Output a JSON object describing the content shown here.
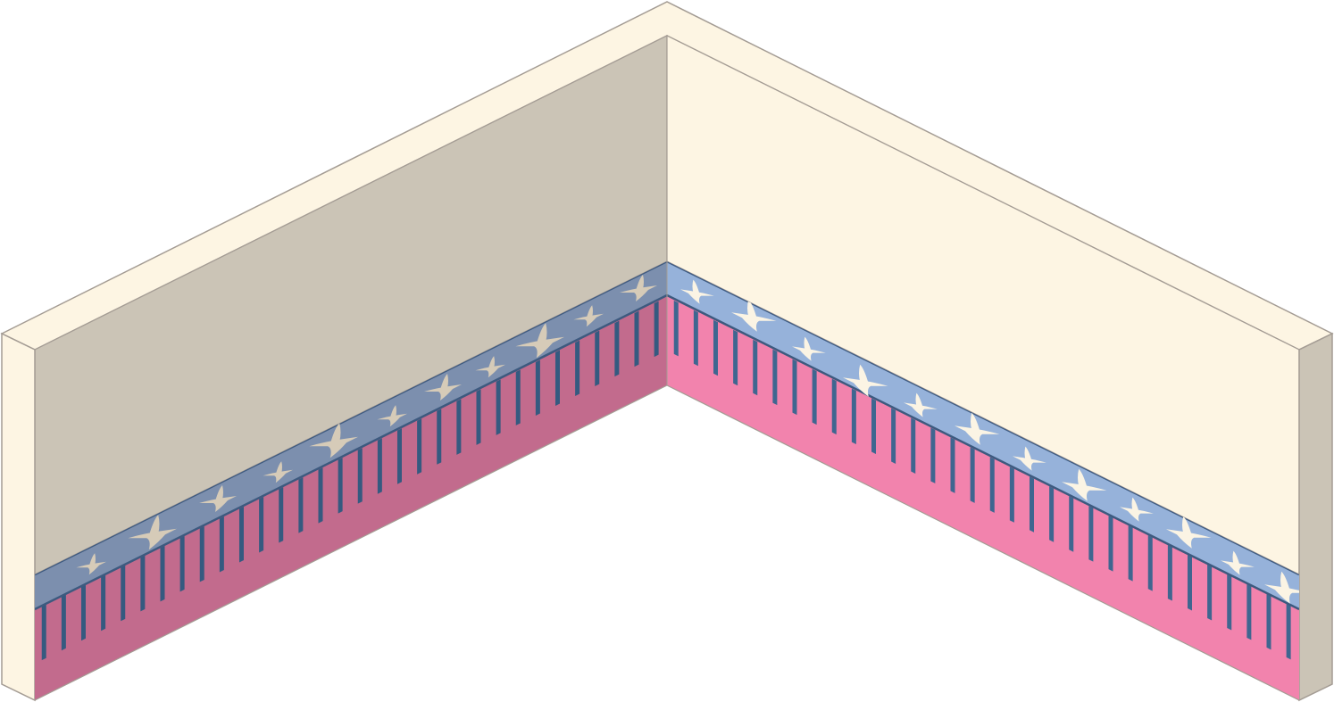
{
  "scene": {
    "description_label": "",
    "colors": {
      "background": "#ffffff",
      "wall_cap": "#fdf5e3",
      "wall_edge_outline": "#a49c94",
      "left_wall_face": "#cbc4b6",
      "right_wall_face": "#fdf5e3",
      "left_end_cap_face": "#fdf5e3",
      "right_end_cap_face": "#cbc4b6",
      "left_frieze_band": "#7c8fae",
      "right_frieze_band": "#96b2da",
      "frieze_border_line": "#3d5a7f",
      "left_dado_base": "#c26b8d",
      "right_dado_base": "#f283ad",
      "left_stripe": "#355a80",
      "right_stripe": "#3f6690",
      "left_bird": "#d6cbb8",
      "right_bird": "#fbf4e4"
    },
    "icons": {
      "flying-bird": "flying-bird-icon"
    }
  }
}
